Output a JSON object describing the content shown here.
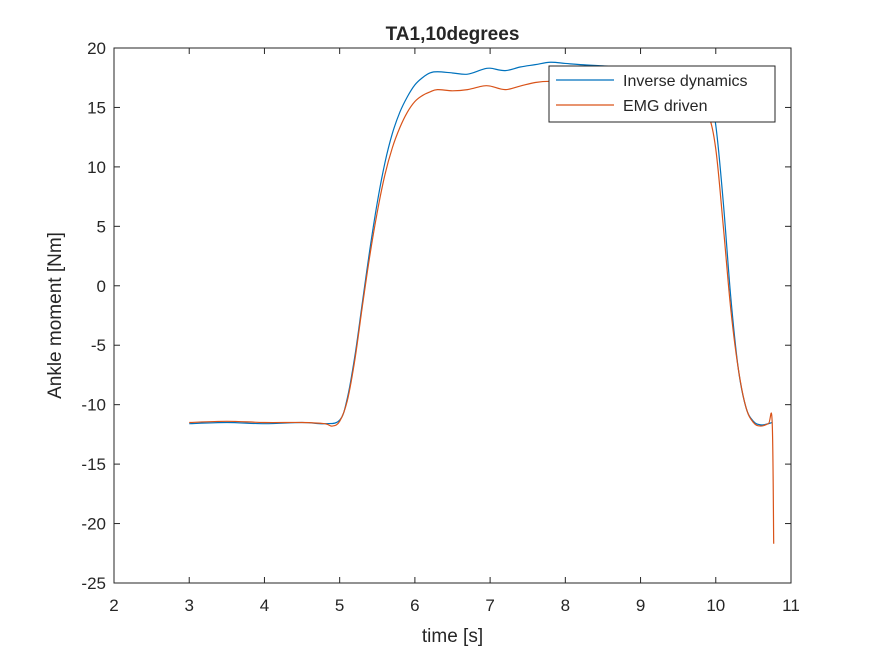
{
  "chart_data": {
    "type": "line",
    "title": "TA1,10degrees",
    "xlabel": "time  [s]",
    "ylabel": "Ankle moment [Nm]",
    "xlim": [
      2,
      11
    ],
    "ylim": [
      -25,
      20
    ],
    "xticks": [
      2,
      3,
      4,
      5,
      6,
      7,
      8,
      9,
      10,
      11
    ],
    "yticks": [
      20,
      15,
      10,
      5,
      0,
      -5,
      -10,
      -15,
      -20,
      -25
    ],
    "grid": false,
    "legend": "top-right",
    "series": [
      {
        "name": "Inverse dynamics",
        "color": "#0072BD",
        "x": [
          3.0,
          3.5,
          4.0,
          4.5,
          4.8,
          5.0,
          5.1,
          5.2,
          5.3,
          5.4,
          5.5,
          5.6,
          5.7,
          5.8,
          5.9,
          6.0,
          6.1,
          6.2,
          6.3,
          6.5,
          6.7,
          6.9,
          7.0,
          7.2,
          7.4,
          7.6,
          7.8,
          8.0,
          8.2,
          8.5,
          8.8,
          9.0,
          9.3,
          9.6,
          9.8,
          9.9,
          10.0,
          10.1,
          10.2,
          10.3,
          10.4,
          10.5,
          10.6,
          10.7,
          10.75
        ],
        "values": [
          -11.6,
          -11.5,
          -11.6,
          -11.5,
          -11.6,
          -11.3,
          -9.5,
          -6.0,
          -1.5,
          3.0,
          7.0,
          10.3,
          12.8,
          14.6,
          15.9,
          16.9,
          17.5,
          17.9,
          18.0,
          17.9,
          17.8,
          18.2,
          18.3,
          18.1,
          18.4,
          18.6,
          18.8,
          18.7,
          18.6,
          18.5,
          18.4,
          18.3,
          18.2,
          18.0,
          17.5,
          16.5,
          13.5,
          7.0,
          -1.0,
          -7.0,
          -10.2,
          -11.4,
          -11.7,
          -11.6,
          -11.5
        ]
      },
      {
        "name": "EMG driven",
        "color": "#D95319",
        "x": [
          3.0,
          3.5,
          4.0,
          4.5,
          4.8,
          4.9,
          5.0,
          5.1,
          5.2,
          5.3,
          5.4,
          5.5,
          5.6,
          5.7,
          5.8,
          5.9,
          6.0,
          6.1,
          6.2,
          6.3,
          6.5,
          6.7,
          6.9,
          7.0,
          7.2,
          7.4,
          7.6,
          7.8,
          8.0,
          8.2,
          8.5,
          8.8,
          9.0,
          9.3,
          9.6,
          9.8,
          9.9,
          10.0,
          10.1,
          10.2,
          10.3,
          10.4,
          10.5,
          10.6,
          10.7,
          10.75,
          10.77
        ],
        "values": [
          -11.5,
          -11.4,
          -11.5,
          -11.5,
          -11.6,
          -11.8,
          -11.4,
          -9.7,
          -6.3,
          -1.8,
          2.5,
          6.2,
          9.3,
          11.6,
          13.3,
          14.6,
          15.5,
          16.0,
          16.3,
          16.5,
          16.4,
          16.5,
          16.8,
          16.8,
          16.5,
          16.8,
          17.1,
          17.2,
          17.1,
          17.0,
          16.9,
          16.8,
          16.7,
          16.6,
          16.3,
          15.8,
          14.5,
          11.5,
          5.0,
          -2.0,
          -7.0,
          -10.2,
          -11.5,
          -11.8,
          -11.6,
          -11.5,
          -21.7
        ]
      }
    ]
  }
}
